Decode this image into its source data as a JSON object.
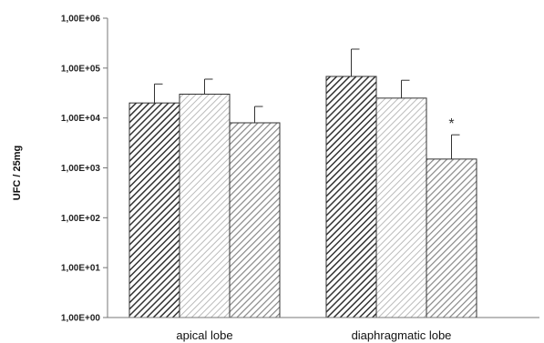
{
  "chart_data": {
    "type": "bar",
    "ylabel": "UFC / 25mg",
    "yscale": "log",
    "ylim": [
      1,
      1000000
    ],
    "yticks": [
      {
        "value": 1,
        "label": "1,00E+00"
      },
      {
        "value": 10,
        "label": "1,00E+01"
      },
      {
        "value": 100,
        "label": "1,00E+02"
      },
      {
        "value": 1000,
        "label": "1,00E+03"
      },
      {
        "value": 10000,
        "label": "1,00E+04"
      },
      {
        "value": 100000,
        "label": "1,00E+05"
      },
      {
        "value": 1000000,
        "label": "1,00E+06"
      }
    ],
    "categories": [
      "apical lobe",
      "diaphragmatic lobe"
    ],
    "series": [
      {
        "pattern": "dark-diagonal-hatch",
        "color": "#333333",
        "values": [
          20000,
          68000
        ],
        "error_upper": [
          48000,
          240000
        ]
      },
      {
        "pattern": "light-diagonal-hatch",
        "color": "#bbbbbb",
        "values": [
          30000,
          25000
        ],
        "error_upper": [
          60000,
          57000
        ]
      },
      {
        "pattern": "medium-diagonal-hatch",
        "color": "#888888",
        "values": [
          8000,
          1500
        ],
        "error_upper": [
          17000,
          4600
        ]
      }
    ],
    "annotations": [
      {
        "text": "*",
        "category": "diaphragmatic lobe",
        "series_index": 2
      }
    ],
    "grid": false,
    "legend": "none"
  }
}
